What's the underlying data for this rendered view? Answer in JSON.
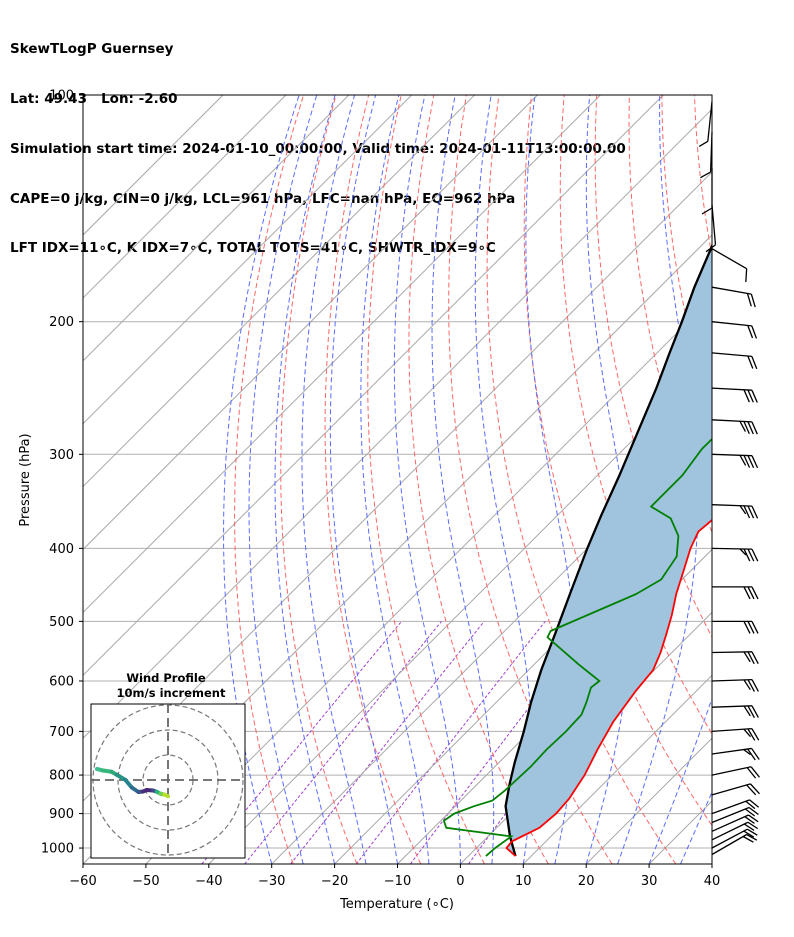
{
  "header": {
    "line1": "SkewTLogP Guernsey",
    "line2": "Lat: 49.43   Lon: -2.60",
    "line3": "Simulation start time: 2024-01-10_00:00:00, Valid time: 2024-01-11T13:00:00.00",
    "line4": "CAPE=0 j/kg, CIN=0 j/kg, LCL=961 hPa, LFC=nan hPa, EQ=962 hPa",
    "line5": "LFT IDX=11∘C, K IDX=7∘C, TOTAL TOTS=41∘C, SHWTR_IDX=9∘C"
  },
  "chart_data": [
    {
      "type": "line",
      "subtype": "skew-t log-p",
      "xlabel": "Temperature (∘C)",
      "ylabel": "Pressure (hPa)",
      "xlim": [
        -60,
        40
      ],
      "ylim": [
        1050,
        100
      ],
      "yscale": "log",
      "grid": true,
      "x_ticks": [
        "−60",
        "−50",
        "−40",
        "−30",
        "−20",
        "−10",
        "0",
        "10",
        "20",
        "30",
        "40"
      ],
      "y_ticks": [
        "100",
        "200",
        "300",
        "400",
        "500",
        "600",
        "700",
        "800",
        "900",
        "1000"
      ],
      "colors": {
        "temperature": "#ff0000",
        "dewpoint": "#008000",
        "parcel": "#000000",
        "shading": "#a0c4de",
        "dry_adiabats": "#ff6666",
        "moist_adiabats": "#5a6cff",
        "mixing_ratio": "#a040d0"
      },
      "series": [
        {
          "key": "temperature",
          "points": [
            [
              7.5,
              1025
            ],
            [
              4.8,
              1000
            ],
            [
              4.6,
              980
            ],
            [
              6.8,
              940
            ],
            [
              7.2,
              900
            ],
            [
              6.9,
              860
            ],
            [
              5.6,
              800
            ],
            [
              3.6,
              740
            ],
            [
              1.7,
              680
            ],
            [
              0.4,
              620
            ],
            [
              -0.2,
              580
            ],
            [
              -1.8,
              550
            ],
            [
              -3.8,
              520
            ],
            [
              -6,
              490
            ],
            [
              -8.6,
              460
            ],
            [
              -11,
              430
            ],
            [
              -13.6,
              400
            ],
            [
              -15,
              380
            ],
            [
              -14.5,
              360
            ],
            [
              -14.5,
              340
            ],
            [
              -14.4,
              320
            ],
            [
              -14.2,
              300
            ],
            [
              -14.2,
              280
            ],
            [
              -14.3,
              262
            ],
            [
              -14,
              250
            ],
            [
              -13.5,
              235
            ],
            [
              -13,
              222
            ],
            [
              -12.5,
              212
            ],
            [
              -11.5,
              200
            ],
            [
              -10,
              190
            ],
            [
              -8.5,
              180
            ],
            [
              -7,
              172
            ],
            [
              -5,
              162
            ],
            [
              -4,
              152
            ],
            [
              -3.5,
              145
            ],
            [
              -3,
              136
            ],
            [
              -2.2,
              126
            ],
            [
              -0.8,
              116
            ],
            [
              0.4,
              107
            ],
            [
              0.8,
              100
            ]
          ]
        },
        {
          "key": "dewpoint",
          "points": [
            [
              2.8,
              1025
            ],
            [
              3,
              1000
            ],
            [
              3.7,
              965
            ],
            [
              -8,
              940
            ],
            [
              -9.5,
              920
            ],
            [
              -9,
              900
            ],
            [
              -7,
              880
            ],
            [
              -5,
              865
            ],
            [
              -4.6,
              840
            ],
            [
              -4.3,
              780
            ],
            [
              -4.5,
              740
            ],
            [
              -4.3,
              700
            ],
            [
              -4.5,
              665
            ],
            [
              -5.7,
              640
            ],
            [
              -7.3,
              612
            ],
            [
              -7,
              600
            ],
            [
              -13,
              570
            ],
            [
              -22.2,
              525
            ],
            [
              -22.7,
              515
            ],
            [
              -15,
              460
            ],
            [
              -13.3,
              440
            ],
            [
              -14.5,
              410
            ],
            [
              -17.5,
              385
            ],
            [
              -21.5,
              365
            ],
            [
              -26.5,
              352
            ],
            [
              -26.5,
              320
            ],
            [
              -27.6,
              295
            ],
            [
              -27.5,
              270
            ],
            [
              -26.5,
              240
            ],
            [
              -25.3,
              210
            ],
            [
              -25,
              195
            ],
            [
              -24.3,
              185
            ],
            [
              -24,
              175
            ],
            [
              -24.3,
              165
            ],
            [
              -23.5,
              155
            ],
            [
              -21.5,
              145
            ],
            [
              -17,
              130
            ],
            [
              -12.5,
              115
            ],
            [
              -9,
              103
            ],
            [
              -8.2,
              100
            ]
          ]
        },
        {
          "key": "parcel",
          "points": [
            [
              7.5,
              1025
            ],
            [
              3.5,
              965
            ],
            [
              -2,
              880
            ],
            [
              -5,
              820
            ],
            [
              -7.5,
              770
            ],
            [
              -11,
              700
            ],
            [
              -14.5,
              640
            ],
            [
              -18,
              580
            ],
            [
              -21.5,
              520
            ],
            [
              -25.5,
              460
            ],
            [
              -30,
              400
            ],
            [
              -33,
              362
            ],
            [
              -36.5,
              320
            ],
            [
              -40.5,
              280
            ],
            [
              -44.5,
              245
            ],
            [
              -48,
              220
            ],
            [
              -51,
              200
            ],
            [
              -54.5,
              180
            ],
            [
              -58,
              160
            ],
            [
              -62,
              140
            ],
            [
              -66,
              120
            ],
            [
              -69,
              106
            ],
            [
              -70.5,
              100
            ]
          ]
        }
      ]
    },
    {
      "type": "line",
      "subtype": "hodograph",
      "title": "Wind Profile",
      "subtitle": "10m/s increment",
      "points": [
        [
          -28.4,
          4.4
        ],
        [
          -26,
          3.8
        ],
        [
          -22.6,
          3.3
        ],
        [
          -20.5,
          2.1
        ],
        [
          -17,
          0
        ],
        [
          -14.5,
          -3
        ],
        [
          -11.8,
          -4.8
        ],
        [
          -10,
          -4.6
        ],
        [
          -8.5,
          -4
        ],
        [
          -6,
          -4.2
        ],
        [
          -4.5,
          -4.7
        ],
        [
          -3,
          -5.5
        ],
        [
          -1.5,
          -5.8
        ],
        [
          0,
          -6.5
        ]
      ]
    }
  ]
}
